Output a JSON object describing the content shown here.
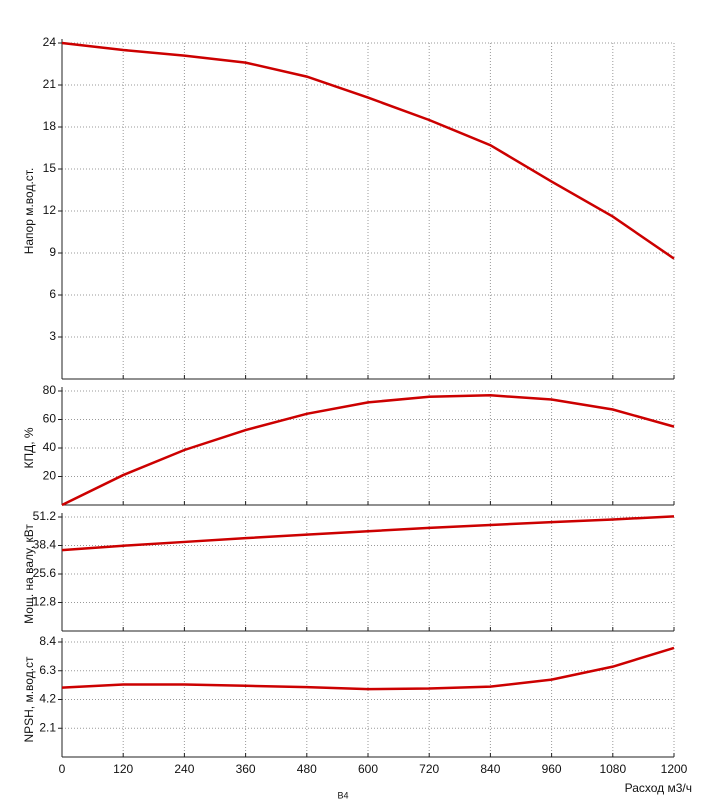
{
  "chart_data": [
    {
      "type": "line",
      "y_label": "Напор м.вод.ст.",
      "color": "#cc0000",
      "grid": true,
      "x": [
        0,
        120,
        240,
        360,
        480,
        600,
        720,
        840,
        960,
        1080,
        1200
      ],
      "values": [
        24,
        23.5,
        23.1,
        22.6,
        21.6,
        20.1,
        18.5,
        16.7,
        14.1,
        11.6,
        8.6
      ],
      "xlim": [
        0,
        1200
      ],
      "xticks": [
        0,
        120,
        240,
        360,
        480,
        600,
        720,
        840,
        960,
        1080,
        1200
      ],
      "ylim": [
        0,
        24
      ],
      "yticks": [
        3,
        6,
        9,
        12,
        15,
        18,
        21,
        24
      ]
    },
    {
      "type": "line",
      "y_label": "КПД, %",
      "color": "#cc0000",
      "grid": true,
      "x": [
        0,
        120,
        240,
        360,
        480,
        600,
        720,
        840,
        960,
        1080,
        1200
      ],
      "values": [
        0,
        21,
        38.6,
        52.6,
        64,
        72,
        76,
        77,
        74,
        67,
        55
      ],
      "xlim": [
        0,
        1200
      ],
      "xticks": [
        0,
        120,
        240,
        360,
        480,
        600,
        720,
        840,
        960,
        1080,
        1200
      ],
      "ylim": [
        0,
        80
      ],
      "yticks": [
        20,
        40,
        60,
        80
      ]
    },
    {
      "type": "line",
      "y_label": "Мощ. на валу, кВт",
      "color": "#cc0000",
      "grid": true,
      "x": [
        0,
        120,
        240,
        360,
        480,
        600,
        720,
        840,
        960,
        1080,
        1200
      ],
      "values": [
        36.3,
        38.3,
        40.0,
        41.7,
        43.3,
        44.8,
        46.3,
        47.6,
        48.9,
        50.1,
        51.5
      ],
      "xlim": [
        0,
        1200
      ],
      "xticks": [
        0,
        120,
        240,
        360,
        480,
        600,
        720,
        840,
        960,
        1080,
        1200
      ],
      "ylim": [
        0,
        51.2
      ],
      "yticks": [
        12.8,
        25.6,
        38.4,
        51.2
      ]
    },
    {
      "type": "line",
      "y_label": "NPSH, м.вод.ст",
      "x_label": "Расход м3/ч",
      "color": "#cc0000",
      "grid": true,
      "x": [
        0,
        120,
        240,
        360,
        480,
        600,
        720,
        840,
        960,
        1080,
        1200
      ],
      "values": [
        5.07,
        5.3,
        5.3,
        5.2,
        5.1,
        4.96,
        5.0,
        5.14,
        5.65,
        6.6,
        7.97
      ],
      "xlim": [
        0,
        1200
      ],
      "xticks": [
        0,
        120,
        240,
        360,
        480,
        600,
        720,
        840,
        960,
        1080,
        1200
      ],
      "ylim": [
        0,
        8.4
      ],
      "yticks": [
        2.1,
        4.2,
        6.3,
        8.4
      ]
    }
  ],
  "footnote": "В4"
}
